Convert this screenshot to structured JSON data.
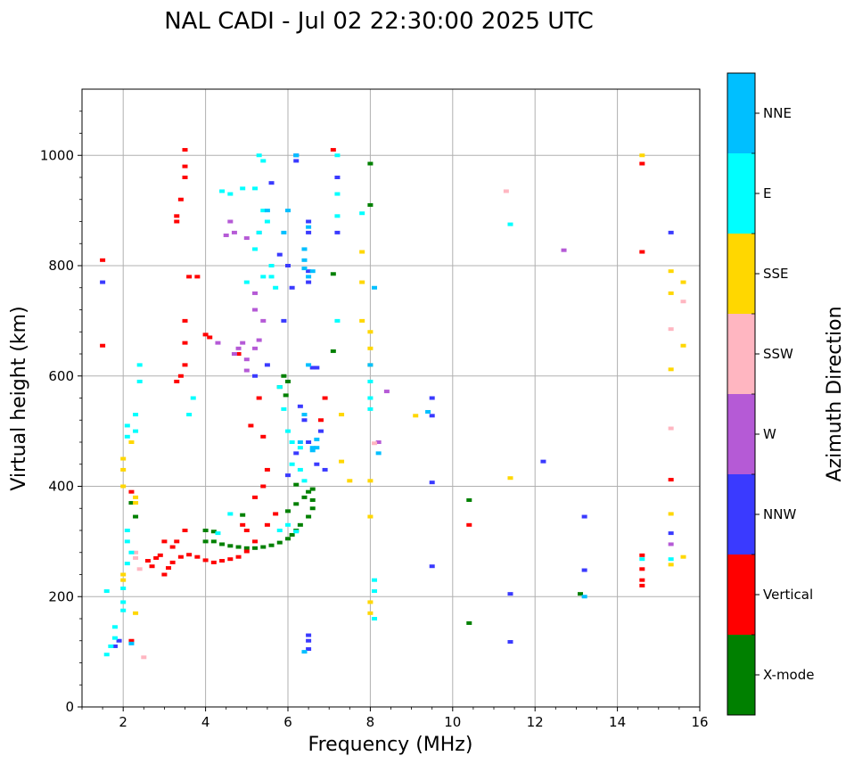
{
  "chart_data": {
    "type": "scatter",
    "title": "NAL CADI - Jul 02 22:30:00 2025 UTC",
    "xlabel": "Frequency (MHz)",
    "ylabel": "Virtual height (km)",
    "xlim": [
      1,
      16
    ],
    "ylim": [
      0,
      1120
    ],
    "x_ticks": [
      2,
      4,
      6,
      8,
      10,
      12,
      14,
      16
    ],
    "x_tick_labels": [
      "2",
      "4",
      "6",
      "8",
      "10",
      "12",
      "14",
      "16"
    ],
    "y_ticks": [
      0,
      200,
      400,
      600,
      800,
      1000
    ],
    "y_tick_labels": [
      "0",
      "200",
      "400",
      "600",
      "800",
      "1000"
    ],
    "grid": true,
    "colorbar": {
      "label": "Azimuth Direction",
      "categories": [
        "X-mode",
        "Vertical",
        "NNW",
        "W",
        "SSW",
        "SSE",
        "E",
        "NNE"
      ],
      "colors": [
        "#008000",
        "#ff0000",
        "#3a3aff",
        "#b55ad6",
        "#ffb6c1",
        "#ffd700",
        "#00ffff",
        "#00bfff"
      ]
    },
    "series": [
      {
        "name": "X-mode",
        "points": [
          [
            4.0,
            300
          ],
          [
            4.2,
            300
          ],
          [
            4.4,
            295
          ],
          [
            4.6,
            292
          ],
          [
            4.8,
            290
          ],
          [
            5.0,
            288
          ],
          [
            5.2,
            288
          ],
          [
            5.4,
            290
          ],
          [
            5.6,
            293
          ],
          [
            5.8,
            298
          ],
          [
            6.0,
            305
          ],
          [
            6.1,
            312
          ],
          [
            6.2,
            320
          ],
          [
            6.3,
            330
          ],
          [
            6.5,
            345
          ],
          [
            6.6,
            360
          ],
          [
            6.6,
            375
          ],
          [
            6.5,
            390
          ],
          [
            6.4,
            380
          ],
          [
            6.2,
            368
          ],
          [
            6.0,
            355
          ],
          [
            5.9,
            600
          ],
          [
            6.0,
            590
          ],
          [
            5.8,
            580
          ],
          [
            4.2,
            318
          ],
          [
            4.0,
            320
          ],
          [
            2.3,
            345
          ],
          [
            2.2,
            370
          ],
          [
            8.0,
            985
          ],
          [
            8.0,
            910
          ],
          [
            7.1,
            785
          ],
          [
            10.4,
            375
          ],
          [
            10.4,
            152
          ],
          [
            13.1,
            205
          ],
          [
            7.1,
            645
          ],
          [
            6.6,
            395
          ],
          [
            6.2,
            403
          ],
          [
            5.95,
            565
          ],
          [
            4.9,
            348
          ]
        ]
      },
      {
        "name": "Vertical",
        "points": [
          [
            3.0,
            240
          ],
          [
            3.1,
            252
          ],
          [
            3.2,
            262
          ],
          [
            3.4,
            272
          ],
          [
            3.6,
            276
          ],
          [
            3.8,
            272
          ],
          [
            4.0,
            266
          ],
          [
            4.2,
            262
          ],
          [
            4.4,
            265
          ],
          [
            4.6,
            268
          ],
          [
            4.8,
            272
          ],
          [
            5.0,
            282
          ],
          [
            2.7,
            255
          ],
          [
            2.6,
            265
          ],
          [
            2.8,
            270
          ],
          [
            2.9,
            275
          ],
          [
            3.2,
            290
          ],
          [
            3.3,
            300
          ],
          [
            3.5,
            320
          ],
          [
            3.0,
            300
          ],
          [
            3.5,
            1010
          ],
          [
            3.5,
            980
          ],
          [
            3.5,
            960
          ],
          [
            3.4,
            920
          ],
          [
            3.3,
            890
          ],
          [
            3.3,
            880
          ],
          [
            3.6,
            780
          ],
          [
            3.8,
            780
          ],
          [
            3.5,
            700
          ],
          [
            3.5,
            660
          ],
          [
            3.5,
            620
          ],
          [
            3.4,
            600
          ],
          [
            3.3,
            590
          ],
          [
            4.0,
            675
          ],
          [
            4.1,
            670
          ],
          [
            5.1,
            510
          ],
          [
            5.4,
            490
          ],
          [
            5.5,
            430
          ],
          [
            5.4,
            400
          ],
          [
            5.2,
            380
          ],
          [
            5.0,
            320
          ],
          [
            4.9,
            330
          ],
          [
            5.2,
            300
          ],
          [
            6.9,
            560
          ],
          [
            6.8,
            520
          ],
          [
            7.1,
            1010
          ],
          [
            2.2,
            390
          ],
          [
            1.5,
            655
          ],
          [
            1.5,
            810
          ],
          [
            10.4,
            330
          ],
          [
            14.6,
            985
          ],
          [
            14.6,
            825
          ],
          [
            14.6,
            230
          ],
          [
            14.6,
            250
          ],
          [
            14.6,
            275
          ],
          [
            14.6,
            220
          ],
          [
            15.3,
            412
          ],
          [
            5.7,
            350
          ],
          [
            5.5,
            330
          ],
          [
            5.3,
            560
          ],
          [
            4.8,
            640
          ],
          [
            2.2,
            120
          ]
        ]
      },
      {
        "name": "NNW",
        "points": [
          [
            6.2,
            1000
          ],
          [
            6.2,
            990
          ],
          [
            6.5,
            880
          ],
          [
            6.5,
            860
          ],
          [
            6.5,
            790
          ],
          [
            6.5,
            770
          ],
          [
            6.6,
            615
          ],
          [
            6.7,
            615
          ],
          [
            6.4,
            520
          ],
          [
            6.3,
            545
          ],
          [
            6.2,
            460
          ],
          [
            6.5,
            480
          ],
          [
            6.7,
            440
          ],
          [
            6.9,
            430
          ],
          [
            6.5,
            120
          ],
          [
            6.5,
            105
          ],
          [
            6.5,
            130
          ],
          [
            5.2,
            600
          ],
          [
            5.5,
            620
          ],
          [
            5.8,
            820
          ],
          [
            6.0,
            800
          ],
          [
            6.1,
            760
          ],
          [
            5.9,
            700
          ],
          [
            7.2,
            960
          ],
          [
            7.2,
            860
          ],
          [
            1.5,
            770
          ],
          [
            9.5,
            560
          ],
          [
            9.5,
            528
          ],
          [
            9.5,
            407
          ],
          [
            9.5,
            255
          ],
          [
            11.4,
            205
          ],
          [
            11.4,
            118
          ],
          [
            12.2,
            445
          ],
          [
            13.2,
            345
          ],
          [
            13.2,
            248
          ],
          [
            15.3,
            860
          ],
          [
            15.3,
            315
          ],
          [
            1.8,
            110
          ],
          [
            1.9,
            120
          ],
          [
            5.6,
            950
          ],
          [
            6.0,
            420
          ],
          [
            6.8,
            500
          ]
        ]
      },
      {
        "name": "W",
        "points": [
          [
            4.6,
            880
          ],
          [
            4.7,
            860
          ],
          [
            4.5,
            855
          ],
          [
            4.7,
            640
          ],
          [
            4.8,
            650
          ],
          [
            4.9,
            660
          ],
          [
            5.0,
            630
          ],
          [
            5.2,
            650
          ],
          [
            5.3,
            665
          ],
          [
            5.4,
            700
          ],
          [
            5.2,
            750
          ],
          [
            5.0,
            850
          ],
          [
            5.3,
            860
          ],
          [
            12.7,
            828
          ],
          [
            15.3,
            295
          ],
          [
            8.4,
            572
          ],
          [
            8.2,
            480
          ],
          [
            4.3,
            660
          ],
          [
            5.2,
            720
          ],
          [
            5.0,
            610
          ]
        ]
      },
      {
        "name": "SSW",
        "points": [
          [
            2.3,
            280
          ],
          [
            2.3,
            270
          ],
          [
            2.4,
            250
          ],
          [
            15.3,
            505
          ],
          [
            15.6,
            735
          ],
          [
            15.3,
            685
          ],
          [
            8.1,
            478
          ],
          [
            11.3,
            935
          ],
          [
            2.5,
            90
          ]
        ]
      },
      {
        "name": "SSE",
        "points": [
          [
            2.0,
            450
          ],
          [
            2.0,
            430
          ],
          [
            2.0,
            400
          ],
          [
            2.3,
            380
          ],
          [
            2.3,
            370
          ],
          [
            2.2,
            480
          ],
          [
            2.0,
            240
          ],
          [
            2.0,
            230
          ],
          [
            2.3,
            170
          ],
          [
            8.0,
            680
          ],
          [
            8.0,
            650
          ],
          [
            8.0,
            620
          ],
          [
            8.0,
            410
          ],
          [
            8.0,
            345
          ],
          [
            8.0,
            190
          ],
          [
            8.0,
            170
          ],
          [
            7.8,
            700
          ],
          [
            7.8,
            770
          ],
          [
            7.8,
            825
          ],
          [
            9.1,
            528
          ],
          [
            11.4,
            415
          ],
          [
            15.3,
            790
          ],
          [
            15.3,
            750
          ],
          [
            15.3,
            612
          ],
          [
            15.3,
            350
          ],
          [
            15.3,
            258
          ],
          [
            15.6,
            770
          ],
          [
            15.6,
            655
          ],
          [
            15.6,
            272
          ],
          [
            14.6,
            1000
          ],
          [
            7.3,
            445
          ],
          [
            7.3,
            530
          ],
          [
            7.5,
            410
          ]
        ]
      },
      {
        "name": "E",
        "points": [
          [
            5.3,
            1000
          ],
          [
            5.4,
            990
          ],
          [
            4.4,
            935
          ],
          [
            4.6,
            930
          ],
          [
            4.9,
            940
          ],
          [
            5.2,
            940
          ],
          [
            5.4,
            900
          ],
          [
            5.5,
            880
          ],
          [
            5.3,
            860
          ],
          [
            5.2,
            830
          ],
          [
            5.6,
            800
          ],
          [
            5.6,
            780
          ],
          [
            5.7,
            760
          ],
          [
            5.4,
            780
          ],
          [
            5.0,
            770
          ],
          [
            5.8,
            580
          ],
          [
            5.9,
            540
          ],
          [
            6.0,
            500
          ],
          [
            6.3,
            470
          ],
          [
            6.3,
            430
          ],
          [
            6.1,
            440
          ],
          [
            6.4,
            410
          ],
          [
            6.0,
            330
          ],
          [
            5.8,
            320
          ],
          [
            6.2,
            318
          ],
          [
            8.0,
            560
          ],
          [
            8.0,
            540
          ],
          [
            8.0,
            590
          ],
          [
            8.1,
            230
          ],
          [
            8.1,
            210
          ],
          [
            8.1,
            160
          ],
          [
            7.2,
            700
          ],
          [
            7.2,
            930
          ],
          [
            7.2,
            890
          ],
          [
            2.4,
            620
          ],
          [
            2.4,
            590
          ],
          [
            2.3,
            530
          ],
          [
            2.3,
            500
          ],
          [
            2.1,
            510
          ],
          [
            2.1,
            490
          ],
          [
            2.1,
            320
          ],
          [
            2.1,
            300
          ],
          [
            2.2,
            280
          ],
          [
            2.1,
            260
          ],
          [
            2.0,
            215
          ],
          [
            2.0,
            190
          ],
          [
            2.0,
            175
          ],
          [
            1.8,
            145
          ],
          [
            1.8,
            125
          ],
          [
            1.7,
            110
          ],
          [
            1.6,
            95
          ],
          [
            1.6,
            210
          ],
          [
            11.4,
            875
          ],
          [
            14.6,
            268
          ],
          [
            15.3,
            268
          ],
          [
            3.6,
            530
          ],
          [
            3.7,
            560
          ],
          [
            4.6,
            350
          ],
          [
            4.3,
            315
          ],
          [
            6.1,
            480
          ],
          [
            7.8,
            895
          ],
          [
            7.2,
            1000
          ]
        ]
      },
      {
        "name": "NNE",
        "points": [
          [
            6.5,
            620
          ],
          [
            6.4,
            530
          ],
          [
            6.3,
            480
          ],
          [
            6.6,
            470
          ],
          [
            6.6,
            465
          ],
          [
            6.7,
            485
          ],
          [
            6.7,
            470
          ],
          [
            6.4,
            830
          ],
          [
            6.4,
            810
          ],
          [
            6.4,
            795
          ],
          [
            6.6,
            790
          ],
          [
            6.5,
            780
          ],
          [
            6.2,
            1000
          ],
          [
            6.5,
            870
          ],
          [
            8.1,
            760
          ],
          [
            8.0,
            620
          ],
          [
            8.2,
            460
          ],
          [
            6.4,
            100
          ],
          [
            13.2,
            200
          ],
          [
            2.2,
            115
          ],
          [
            9.4,
            535
          ],
          [
            6.0,
            900
          ],
          [
            5.9,
            860
          ],
          [
            5.5,
            900
          ]
        ]
      }
    ]
  }
}
